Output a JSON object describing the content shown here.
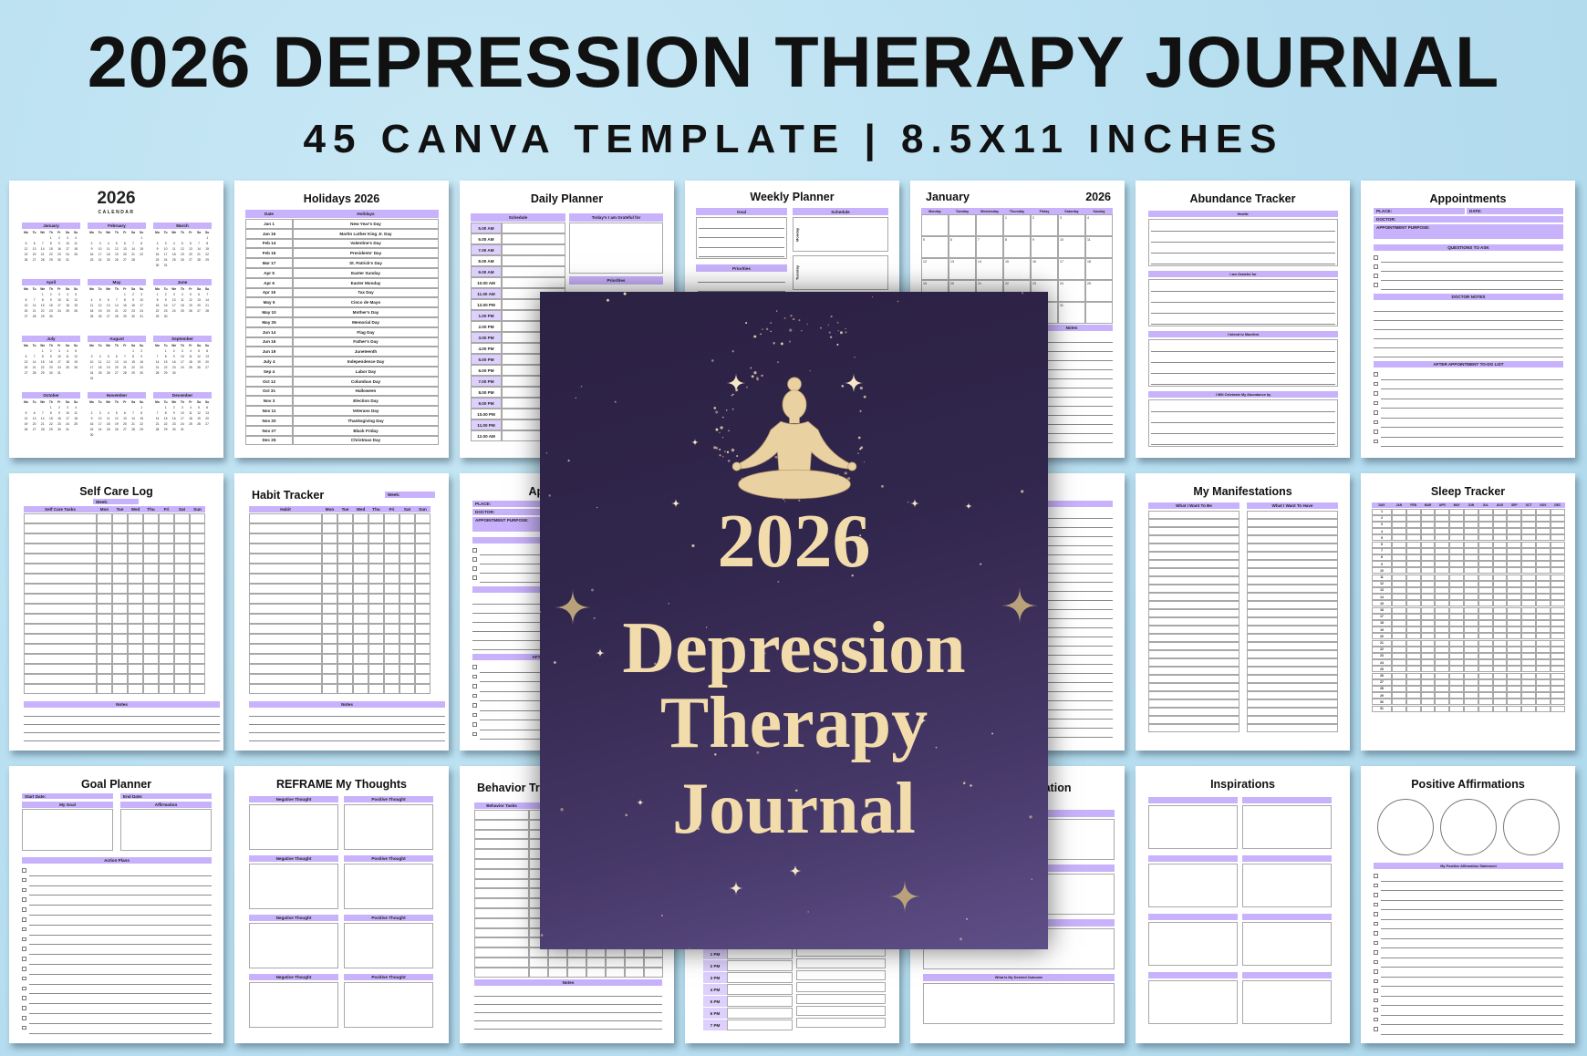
{
  "header": {
    "title": "2026 DEPRESSION THERAPY JOURNAL",
    "subtitle": "45 CANVA TEMPLATE | 8.5X11 INCHES"
  },
  "colors": {
    "background": "#bfe3f2",
    "accent": "#c8b2fb",
    "cover": "#3a2d58",
    "cover_text": "#f3dcab"
  },
  "cover": {
    "year": "2026",
    "line1": "Depression",
    "line2": "Therapy",
    "line3": "Journal",
    "icon": "meditation-figure-icon"
  },
  "pages": {
    "calendar": {
      "year": "2026",
      "subtitle": "CALENDAR",
      "months": [
        "January",
        "February",
        "March",
        "April",
        "May",
        "June",
        "July",
        "August",
        "September",
        "October",
        "November",
        "December"
      ],
      "weekdays": [
        "Mo",
        "Tu",
        "We",
        "Th",
        "Fr",
        "Sa",
        "Su"
      ]
    },
    "holidays": {
      "title": "Holidays 2026",
      "headers": [
        "Date",
        "Holidays"
      ],
      "rows": [
        [
          "Jan 1",
          "New Year's Day"
        ],
        [
          "Jan 16",
          "Martin Luther King Jr. Day"
        ],
        [
          "Feb 14",
          "Valentine's Day"
        ],
        [
          "Feb 16",
          "Presidents' Day"
        ],
        [
          "Mar 17",
          "St. Patrick's Day"
        ],
        [
          "Apr 5",
          "Easter Sunday"
        ],
        [
          "Apr 6",
          "Easter Monday"
        ],
        [
          "Apr 15",
          "Tax Day"
        ],
        [
          "May 5",
          "Cinco de Mayo"
        ],
        [
          "May 10",
          "Mother's Day"
        ],
        [
          "May 25",
          "Memorial Day"
        ],
        [
          "Jun 14",
          "Flag Day"
        ],
        [
          "Jun 16",
          "Father's Day"
        ],
        [
          "Jun 19",
          "Juneteenth"
        ],
        [
          "July 4",
          "Independence Day"
        ],
        [
          "Sep 4",
          "Labor Day"
        ],
        [
          "Oct 12",
          "Columbus Day"
        ],
        [
          "Oct 31",
          "Halloween"
        ],
        [
          "Nov 3",
          "Election Day"
        ],
        [
          "Nov 11",
          "Veterans Day"
        ],
        [
          "Nov 20",
          "Thanksgiving Day"
        ],
        [
          "Nov 27",
          "Black Friday"
        ],
        [
          "Dec 25",
          "Christmas Day"
        ]
      ]
    },
    "daily": {
      "title": "Daily Planner",
      "schedule": "Schedule",
      "grateful": "Today's I am Grateful for",
      "priorities": "Priorities",
      "times": [
        "5.00 AM",
        "6.00 AM",
        "7.00 AM",
        "8.00 AM",
        "9.00 AM",
        "10.00 AM",
        "11.00 AM",
        "12.00 PM",
        "1.00 PM",
        "2.00 PM",
        "3.00 PM",
        "4.00 PM",
        "5.00 PM",
        "6.00 PM",
        "7.00 PM",
        "8.00 PM",
        "9.00 PM",
        "10.00 PM",
        "11.00 PM",
        "12.00 AM"
      ]
    },
    "weekly": {
      "title": "Weekly Planner",
      "goal": "Goal",
      "schedule": "Schedule",
      "priorities": "Priorities",
      "days": [
        "Monday",
        "Tuesday"
      ]
    },
    "january": {
      "title": "January",
      "year": "2026",
      "weekdays": [
        "Monday",
        "Tuesday",
        "Wednesday",
        "Thursday",
        "Friday",
        "Saturday",
        "Sunday"
      ],
      "notes": "Notes"
    },
    "abundance": {
      "title": "Abundance Tracker",
      "sections": [
        "Health:",
        "I am Grateful for",
        "I Intend to Manifest",
        "I Will Celebrate My Abundance by"
      ]
    },
    "appointments": {
      "title": "Appointments",
      "place": "PLACE:",
      "date": "DATE:",
      "doctor": "DOCTOR:",
      "purpose": "APPOINTMENT PURPOSE:",
      "questions": "QUESTIONS TO ASK",
      "notes": "DOCTOR NOTES",
      "todo": "AFTER APPOINTMENT TO-DO LIST"
    },
    "selfcare": {
      "title": "Self Care Log",
      "week": "Week:",
      "task": "Self Care Tasks",
      "days": [
        "Mon",
        "Tue",
        "Wed",
        "Thu",
        "Fri",
        "Sat",
        "Sun"
      ],
      "notes": "Notes"
    },
    "habit": {
      "title": "Habit Tracker",
      "week": "Week:",
      "task": "Habit",
      "days": [
        "Mon",
        "Tue",
        "Wed",
        "Thu",
        "Fri",
        "Sat",
        "Sun"
      ],
      "notes": "Notes"
    },
    "manifest": {
      "title": "My Manifestations",
      "col1": "What I Want To Be",
      "col2": "What I Want To Have"
    },
    "sleep": {
      "title": "Sleep Tracker",
      "day": "DAY",
      "months": [
        "JAN",
        "FEB",
        "MAR",
        "APR",
        "MAY",
        "JUN",
        "JUL",
        "AUG",
        "SEP",
        "OCT",
        "NOV",
        "DEC"
      ]
    },
    "goal": {
      "title": "Goal Planner",
      "start": "Start Date:",
      "end": "End Date:",
      "goal": "My Goal",
      "affirmation": "Affirmation",
      "actions": "Action Plans"
    },
    "reframe": {
      "title": "REFRAME My Thoughts",
      "negative": "Negative Thought",
      "positive": "Positive Thought"
    },
    "behavior": {
      "title": "Behavior Tracker",
      "tasks": "Behavior Tasks",
      "notes": "Notes"
    },
    "hourly": {
      "times": [
        "1 PM",
        "2 PM",
        "3 PM",
        "4 PM",
        "5 PM",
        "6 PM",
        "7 PM"
      ]
    },
    "situation": {
      "title": "Situation",
      "sections": [
        "",
        "",
        "Situation",
        "What Is My Desired Outcome"
      ]
    },
    "inspirations": {
      "title": "Inspirations"
    },
    "affirmations": {
      "title": "Positive Affirmations",
      "statement": "My Positive Affirmation Statement"
    }
  }
}
